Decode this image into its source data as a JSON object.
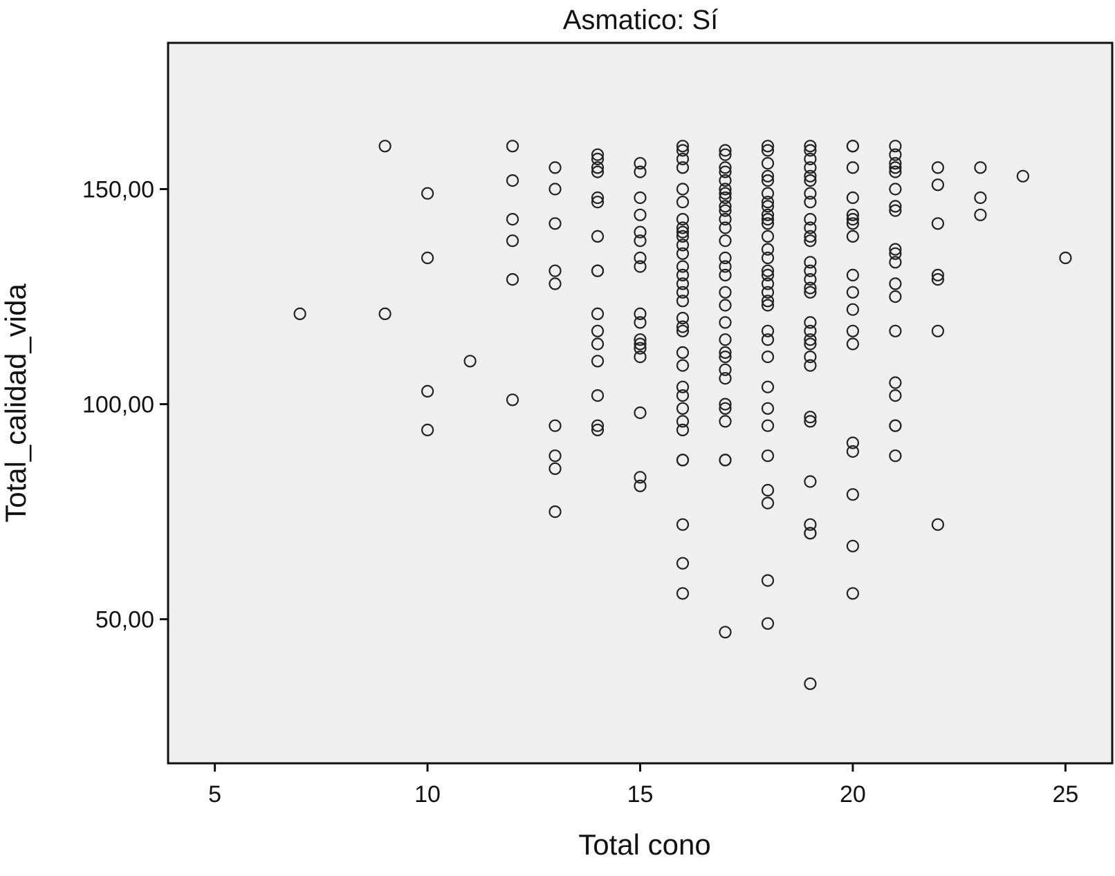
{
  "chart_data": {
    "type": "scatter",
    "title": "Asmatico: Sí",
    "xlabel": "Total cono",
    "ylabel": "Total_calidad_vida",
    "xlim": [
      3.9,
      26.1
    ],
    "ylim": [
      16.5,
      184
    ],
    "xticks": [
      5,
      10,
      15,
      20,
      25
    ],
    "xtick_labels": [
      "5",
      "10",
      "15",
      "20",
      "25"
    ],
    "yticks": [
      50,
      100,
      150
    ],
    "ytick_labels": [
      "50,00",
      "100,00",
      "150,00"
    ],
    "grid": false,
    "legend": "none",
    "series": [
      {
        "points": [
          [
            7,
            121
          ],
          [
            9,
            160
          ],
          [
            9,
            121
          ],
          [
            10,
            149
          ],
          [
            10,
            134
          ],
          [
            10,
            103
          ],
          [
            10,
            94
          ],
          [
            11,
            110
          ],
          [
            12,
            160
          ],
          [
            12,
            152
          ],
          [
            12,
            143
          ],
          [
            12,
            138
          ],
          [
            12,
            129
          ],
          [
            12,
            101
          ],
          [
            13,
            155
          ],
          [
            13,
            150
          ],
          [
            13,
            142
          ],
          [
            13,
            131
          ],
          [
            13,
            128
          ],
          [
            13,
            95
          ],
          [
            13,
            88
          ],
          [
            13,
            85
          ],
          [
            13,
            75
          ],
          [
            14,
            158
          ],
          [
            14,
            157
          ],
          [
            14,
            155
          ],
          [
            14,
            154
          ],
          [
            14,
            148
          ],
          [
            14,
            147
          ],
          [
            14,
            139
          ],
          [
            14,
            131
          ],
          [
            14,
            131
          ],
          [
            14,
            121
          ],
          [
            14,
            117
          ],
          [
            14,
            114
          ],
          [
            14,
            110
          ],
          [
            14,
            102
          ],
          [
            14,
            95
          ],
          [
            14,
            94
          ],
          [
            15,
            156
          ],
          [
            15,
            154
          ],
          [
            15,
            148
          ],
          [
            15,
            144
          ],
          [
            15,
            140
          ],
          [
            15,
            138
          ],
          [
            15,
            134
          ],
          [
            15,
            132
          ],
          [
            15,
            121
          ],
          [
            15,
            119
          ],
          [
            15,
            115
          ],
          [
            15,
            114
          ],
          [
            15,
            113
          ],
          [
            15,
            111
          ],
          [
            15,
            98
          ],
          [
            15,
            83
          ],
          [
            15,
            81
          ],
          [
            16,
            160
          ],
          [
            16,
            159
          ],
          [
            16,
            157
          ],
          [
            16,
            155
          ],
          [
            16,
            150
          ],
          [
            16,
            147
          ],
          [
            16,
            143
          ],
          [
            16,
            141
          ],
          [
            16,
            140
          ],
          [
            16,
            139
          ],
          [
            16,
            137
          ],
          [
            16,
            135
          ],
          [
            16,
            132
          ],
          [
            16,
            130
          ],
          [
            16,
            128
          ],
          [
            16,
            126
          ],
          [
            16,
            124
          ],
          [
            16,
            120
          ],
          [
            16,
            118
          ],
          [
            16,
            117
          ],
          [
            16,
            112
          ],
          [
            16,
            109
          ],
          [
            16,
            104
          ],
          [
            16,
            102
          ],
          [
            16,
            99
          ],
          [
            16,
            96
          ],
          [
            16,
            94
          ],
          [
            16,
            87
          ],
          [
            16,
            87
          ],
          [
            16,
            72
          ],
          [
            16,
            63
          ],
          [
            16,
            56
          ],
          [
            17,
            159
          ],
          [
            17,
            158
          ],
          [
            17,
            155
          ],
          [
            17,
            154
          ],
          [
            17,
            152
          ],
          [
            17,
            150
          ],
          [
            17,
            149
          ],
          [
            17,
            148
          ],
          [
            17,
            146
          ],
          [
            17,
            145
          ],
          [
            17,
            143
          ],
          [
            17,
            141
          ],
          [
            17,
            138
          ],
          [
            17,
            134
          ],
          [
            17,
            132
          ],
          [
            17,
            130
          ],
          [
            17,
            126
          ],
          [
            17,
            123
          ],
          [
            17,
            119
          ],
          [
            17,
            115
          ],
          [
            17,
            112
          ],
          [
            17,
            111
          ],
          [
            17,
            108
          ],
          [
            17,
            106
          ],
          [
            17,
            100
          ],
          [
            17,
            99
          ],
          [
            17,
            96
          ],
          [
            17,
            87
          ],
          [
            17,
            87
          ],
          [
            17,
            47
          ],
          [
            18,
            160
          ],
          [
            18,
            159
          ],
          [
            18,
            156
          ],
          [
            18,
            153
          ],
          [
            18,
            152
          ],
          [
            18,
            149
          ],
          [
            18,
            147
          ],
          [
            18,
            146
          ],
          [
            18,
            144
          ],
          [
            18,
            143
          ],
          [
            18,
            142
          ],
          [
            18,
            139
          ],
          [
            18,
            136
          ],
          [
            18,
            134
          ],
          [
            18,
            131
          ],
          [
            18,
            130
          ],
          [
            18,
            128
          ],
          [
            18,
            126
          ],
          [
            18,
            124
          ],
          [
            18,
            123
          ],
          [
            18,
            117
          ],
          [
            18,
            115
          ],
          [
            18,
            111
          ],
          [
            18,
            104
          ],
          [
            18,
            99
          ],
          [
            18,
            95
          ],
          [
            18,
            88
          ],
          [
            18,
            80
          ],
          [
            18,
            77
          ],
          [
            18,
            59
          ],
          [
            18,
            49
          ],
          [
            19,
            160
          ],
          [
            19,
            159
          ],
          [
            19,
            157
          ],
          [
            19,
            155
          ],
          [
            19,
            153
          ],
          [
            19,
            152
          ],
          [
            19,
            149
          ],
          [
            19,
            147
          ],
          [
            19,
            143
          ],
          [
            19,
            141
          ],
          [
            19,
            139
          ],
          [
            19,
            138
          ],
          [
            19,
            133
          ],
          [
            19,
            131
          ],
          [
            19,
            129
          ],
          [
            19,
            127
          ],
          [
            19,
            126
          ],
          [
            19,
            119
          ],
          [
            19,
            117
          ],
          [
            19,
            115
          ],
          [
            19,
            114
          ],
          [
            19,
            111
          ],
          [
            19,
            109
          ],
          [
            19,
            97
          ],
          [
            19,
            96
          ],
          [
            19,
            82
          ],
          [
            19,
            72
          ],
          [
            19,
            70
          ],
          [
            19,
            70
          ],
          [
            19,
            35
          ],
          [
            20,
            160
          ],
          [
            20,
            160
          ],
          [
            20,
            155
          ],
          [
            20,
            148
          ],
          [
            20,
            144
          ],
          [
            20,
            143
          ],
          [
            20,
            142
          ],
          [
            20,
            139
          ],
          [
            20,
            130
          ],
          [
            20,
            126
          ],
          [
            20,
            122
          ],
          [
            20,
            117
          ],
          [
            20,
            114
          ],
          [
            20,
            91
          ],
          [
            20,
            89
          ],
          [
            20,
            79
          ],
          [
            20,
            67
          ],
          [
            20,
            56
          ],
          [
            21,
            160
          ],
          [
            21,
            158
          ],
          [
            21,
            156
          ],
          [
            21,
            155
          ],
          [
            21,
            154
          ],
          [
            21,
            150
          ],
          [
            21,
            146
          ],
          [
            21,
            145
          ],
          [
            21,
            136
          ],
          [
            21,
            135
          ],
          [
            21,
            133
          ],
          [
            21,
            128
          ],
          [
            21,
            125
          ],
          [
            21,
            117
          ],
          [
            21,
            105
          ],
          [
            21,
            102
          ],
          [
            21,
            95
          ],
          [
            21,
            95
          ],
          [
            21,
            88
          ],
          [
            22,
            155
          ],
          [
            22,
            151
          ],
          [
            22,
            142
          ],
          [
            22,
            130
          ],
          [
            22,
            129
          ],
          [
            22,
            117
          ],
          [
            22,
            72
          ],
          [
            23,
            155
          ],
          [
            23,
            148
          ],
          [
            23,
            144
          ],
          [
            24,
            153
          ],
          [
            25,
            134
          ]
        ]
      }
    ]
  }
}
